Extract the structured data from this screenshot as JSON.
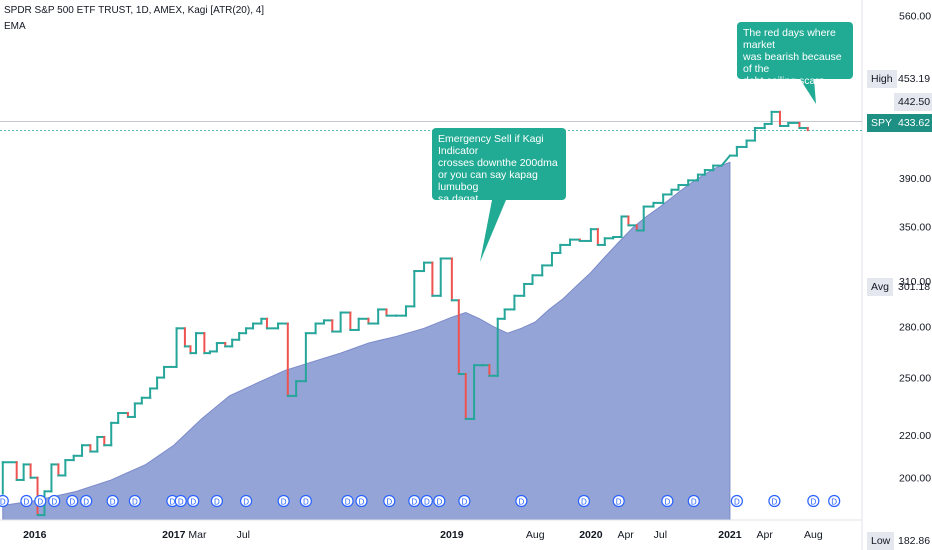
{
  "legend": {
    "line1": "SPDR S&P 500 ETF TRUST, 1D, AMEX, Kagi [ATR(20), 4]",
    "line2": "EMA"
  },
  "annotations": [
    {
      "text": "Emergency Sell if Kagi Indicator\ncrosses downthe 200dma\nor you can say kapag lumubog\nsa dagat"
    },
    {
      "text": "The red days where market\nwas bearish because of the\ndebt ceiling scare"
    }
  ],
  "colors": {
    "up": "#26a69a",
    "down": "#ef5350",
    "ema_fill": "#8e9fd4",
    "ema_line": "#7b8ac9",
    "callout": "#22ab94",
    "spy_tag": "#1e8f83",
    "grid_label_bg": "#e4e7ed"
  },
  "price_tags": {
    "high_label": "High",
    "high_value": "453.19",
    "level_value": "442.50",
    "spy_label": "SPY",
    "spy_value": "433.62",
    "avg_label": "Avg",
    "avg_value": "301.18",
    "low_label": "Low",
    "low_value": "182.86"
  },
  "chart_data": {
    "type": "line",
    "chart_style": "kagi",
    "y_scale": "log",
    "y_ticks": [
      200,
      220,
      250,
      280,
      310,
      350,
      390,
      560
    ],
    "y_tick_labels": [
      "200.00",
      "220.00",
      "250.00",
      "280.00",
      "310.00",
      "350.00",
      "390.00",
      "560.00"
    ],
    "ylim": [
      182,
      580
    ],
    "x_ticks": [
      "2016",
      "2017",
      "Mar",
      "Jul",
      "2019",
      "Aug",
      "2020",
      "Apr",
      "Jul",
      "2021",
      "Apr",
      "Aug"
    ],
    "xlim": [
      2015.75,
      2021.95
    ],
    "x_tick_positions": [
      2016.0,
      2017.0,
      2017.17,
      2017.5,
      2019.0,
      2019.6,
      2020.0,
      2020.25,
      2020.5,
      2021.0,
      2021.25,
      2021.6
    ],
    "dividend_markers": [
      2015.77,
      2015.94,
      2016.04,
      2016.14,
      2016.27,
      2016.37,
      2016.56,
      2016.72,
      2016.99,
      2017.05,
      2017.14,
      2017.31,
      2017.52,
      2017.79,
      2017.95,
      2018.25,
      2018.35,
      2018.55,
      2018.73,
      2018.82,
      2018.91,
      2019.09,
      2019.5,
      2019.95,
      2020.2,
      2020.55,
      2020.74,
      2021.05,
      2021.32,
      2021.6,
      2021.75
    ],
    "kagi": [
      [
        2015.77,
        193
      ],
      [
        2015.77,
        207
      ],
      [
        2015.87,
        207
      ],
      [
        2015.87,
        199
      ],
      [
        2015.92,
        199
      ],
      [
        2015.92,
        206
      ],
      [
        2015.97,
        206
      ],
      [
        2015.97,
        200
      ],
      [
        2016.02,
        200
      ],
      [
        2016.02,
        184
      ],
      [
        2016.07,
        184
      ],
      [
        2016.07,
        194
      ],
      [
        2016.12,
        194
      ],
      [
        2016.12,
        206
      ],
      [
        2016.17,
        206
      ],
      [
        2016.17,
        201
      ],
      [
        2016.22,
        201
      ],
      [
        2016.22,
        208
      ],
      [
        2016.28,
        208
      ],
      [
        2016.28,
        210
      ],
      [
        2016.34,
        210
      ],
      [
        2016.34,
        215
      ],
      [
        2016.4,
        215
      ],
      [
        2016.4,
        212
      ],
      [
        2016.45,
        212
      ],
      [
        2016.45,
        219
      ],
      [
        2016.5,
        219
      ],
      [
        2016.5,
        215
      ],
      [
        2016.55,
        215
      ],
      [
        2016.55,
        226
      ],
      [
        2016.6,
        226
      ],
      [
        2016.6,
        231
      ],
      [
        2016.67,
        231
      ],
      [
        2016.67,
        229
      ],
      [
        2016.72,
        229
      ],
      [
        2016.72,
        236
      ],
      [
        2016.77,
        236
      ],
      [
        2016.77,
        239
      ],
      [
        2016.83,
        239
      ],
      [
        2016.83,
        244
      ],
      [
        2016.88,
        244
      ],
      [
        2016.88,
        250
      ],
      [
        2016.93,
        250
      ],
      [
        2016.93,
        256
      ],
      [
        2017.02,
        256
      ],
      [
        2017.02,
        279
      ],
      [
        2017.08,
        279
      ],
      [
        2017.08,
        268
      ],
      [
        2017.12,
        268
      ],
      [
        2017.12,
        264
      ],
      [
        2017.16,
        264
      ],
      [
        2017.16,
        276
      ],
      [
        2017.22,
        276
      ],
      [
        2017.22,
        264
      ],
      [
        2017.26,
        264
      ],
      [
        2017.26,
        265
      ],
      [
        2017.31,
        265
      ],
      [
        2017.31,
        270
      ],
      [
        2017.37,
        270
      ],
      [
        2017.37,
        268
      ],
      [
        2017.42,
        268
      ],
      [
        2017.42,
        272
      ],
      [
        2017.47,
        272
      ],
      [
        2017.47,
        276
      ],
      [
        2017.52,
        276
      ],
      [
        2017.52,
        279
      ],
      [
        2017.57,
        279
      ],
      [
        2017.57,
        282
      ],
      [
        2017.63,
        282
      ],
      [
        2017.63,
        285
      ],
      [
        2017.67,
        285
      ],
      [
        2017.67,
        279
      ],
      [
        2017.75,
        279
      ],
      [
        2017.75,
        282
      ],
      [
        2017.82,
        282
      ],
      [
        2017.82,
        240
      ],
      [
        2017.88,
        240
      ],
      [
        2017.88,
        248
      ],
      [
        2017.95,
        248
      ],
      [
        2017.95,
        276
      ],
      [
        2018.02,
        276
      ],
      [
        2018.02,
        282
      ],
      [
        2018.08,
        282
      ],
      [
        2018.08,
        284
      ],
      [
        2018.14,
        284
      ],
      [
        2018.14,
        277
      ],
      [
        2018.2,
        277
      ],
      [
        2018.2,
        289
      ],
      [
        2018.27,
        289
      ],
      [
        2018.27,
        278
      ],
      [
        2018.33,
        278
      ],
      [
        2018.33,
        285
      ],
      [
        2018.4,
        285
      ],
      [
        2018.4,
        282
      ],
      [
        2018.47,
        282
      ],
      [
        2018.47,
        291
      ],
      [
        2018.53,
        291
      ],
      [
        2018.53,
        287
      ],
      [
        2018.6,
        287
      ],
      [
        2018.6,
        287
      ],
      [
        2018.67,
        287
      ],
      [
        2018.67,
        293
      ],
      [
        2018.73,
        293
      ],
      [
        2018.73,
        317
      ],
      [
        2018.8,
        317
      ],
      [
        2018.8,
        323
      ],
      [
        2018.86,
        323
      ],
      [
        2018.86,
        300
      ],
      [
        2018.92,
        300
      ],
      [
        2018.92,
        326
      ],
      [
        2019.0,
        326
      ],
      [
        2019.0,
        297
      ],
      [
        2019.05,
        297
      ],
      [
        2019.05,
        252
      ],
      [
        2019.1,
        252
      ],
      [
        2019.1,
        228
      ],
      [
        2019.16,
        228
      ],
      [
        2019.16,
        257
      ],
      [
        2019.22,
        257
      ],
      [
        2019.22,
        257
      ],
      [
        2019.27,
        257
      ],
      [
        2019.27,
        251
      ],
      [
        2019.33,
        251
      ],
      [
        2019.33,
        285
      ],
      [
        2019.38,
        285
      ],
      [
        2019.38,
        291
      ],
      [
        2019.45,
        291
      ],
      [
        2019.45,
        300
      ],
      [
        2019.52,
        300
      ],
      [
        2019.52,
        308
      ],
      [
        2019.58,
        308
      ],
      [
        2019.58,
        314
      ],
      [
        2019.65,
        314
      ],
      [
        2019.65,
        321
      ],
      [
        2019.72,
        321
      ],
      [
        2019.72,
        330
      ],
      [
        2019.78,
        330
      ],
      [
        2019.78,
        336
      ],
      [
        2019.85,
        336
      ],
      [
        2019.85,
        340
      ],
      [
        2019.92,
        340
      ],
      [
        2019.92,
        339
      ],
      [
        2020.0,
        339
      ],
      [
        2020.0,
        348
      ],
      [
        2020.05,
        348
      ],
      [
        2020.05,
        336
      ],
      [
        2020.1,
        336
      ],
      [
        2020.1,
        341
      ],
      [
        2020.16,
        341
      ],
      [
        2020.16,
        342
      ],
      [
        2020.22,
        342
      ],
      [
        2020.22,
        358
      ],
      [
        2020.27,
        358
      ],
      [
        2020.27,
        351
      ],
      [
        2020.33,
        351
      ],
      [
        2020.33,
        347
      ],
      [
        2020.38,
        347
      ],
      [
        2020.38,
        366
      ],
      [
        2020.45,
        366
      ],
      [
        2020.45,
        369
      ],
      [
        2020.52,
        369
      ],
      [
        2020.52,
        376
      ],
      [
        2020.58,
        376
      ],
      [
        2020.58,
        380
      ],
      [
        2020.63,
        380
      ],
      [
        2020.63,
        384
      ],
      [
        2020.7,
        384
      ],
      [
        2020.7,
        388
      ],
      [
        2020.77,
        388
      ],
      [
        2020.77,
        393
      ],
      [
        2020.82,
        393
      ],
      [
        2020.82,
        397
      ],
      [
        2020.88,
        397
      ],
      [
        2020.88,
        401
      ],
      [
        2020.94,
        401
      ],
      [
        2021.0,
        410
      ],
      [
        2021.05,
        410
      ],
      [
        2021.05,
        418
      ],
      [
        2021.12,
        418
      ],
      [
        2021.12,
        424
      ],
      [
        2021.18,
        424
      ],
      [
        2021.18,
        436
      ],
      [
        2021.25,
        436
      ],
      [
        2021.25,
        440
      ],
      [
        2021.3,
        440
      ],
      [
        2021.3,
        452
      ],
      [
        2021.36,
        452
      ],
      [
        2021.36,
        438
      ],
      [
        2021.42,
        438
      ],
      [
        2021.42,
        441
      ],
      [
        2021.5,
        441
      ],
      [
        2021.5,
        436
      ],
      [
        2021.56,
        436
      ],
      [
        2021.56,
        434
      ]
    ],
    "ema": [
      [
        2015.77,
        188
      ],
      [
        2016.0,
        190
      ],
      [
        2016.3,
        194
      ],
      [
        2016.55,
        199
      ],
      [
        2016.8,
        206
      ],
      [
        2017.0,
        215
      ],
      [
        2017.2,
        228
      ],
      [
        2017.4,
        240
      ],
      [
        2017.6,
        247
      ],
      [
        2017.8,
        254
      ],
      [
        2018.0,
        259
      ],
      [
        2018.2,
        264
      ],
      [
        2018.4,
        270
      ],
      [
        2018.6,
        274
      ],
      [
        2018.8,
        279
      ],
      [
        2019.0,
        286
      ],
      [
        2019.1,
        289
      ],
      [
        2019.2,
        285
      ],
      [
        2019.3,
        280
      ],
      [
        2019.4,
        276
      ],
      [
        2019.5,
        279
      ],
      [
        2019.6,
        283
      ],
      [
        2019.7,
        291
      ],
      [
        2019.8,
        298
      ],
      [
        2019.9,
        307
      ],
      [
        2020.0,
        316
      ],
      [
        2020.1,
        327
      ],
      [
        2020.2,
        338
      ],
      [
        2020.3,
        349
      ],
      [
        2020.4,
        358
      ],
      [
        2020.5,
        366
      ],
      [
        2020.6,
        375
      ],
      [
        2020.7,
        384
      ],
      [
        2020.8,
        392
      ],
      [
        2020.9,
        399
      ],
      [
        2021.0,
        404
      ]
    ]
  }
}
